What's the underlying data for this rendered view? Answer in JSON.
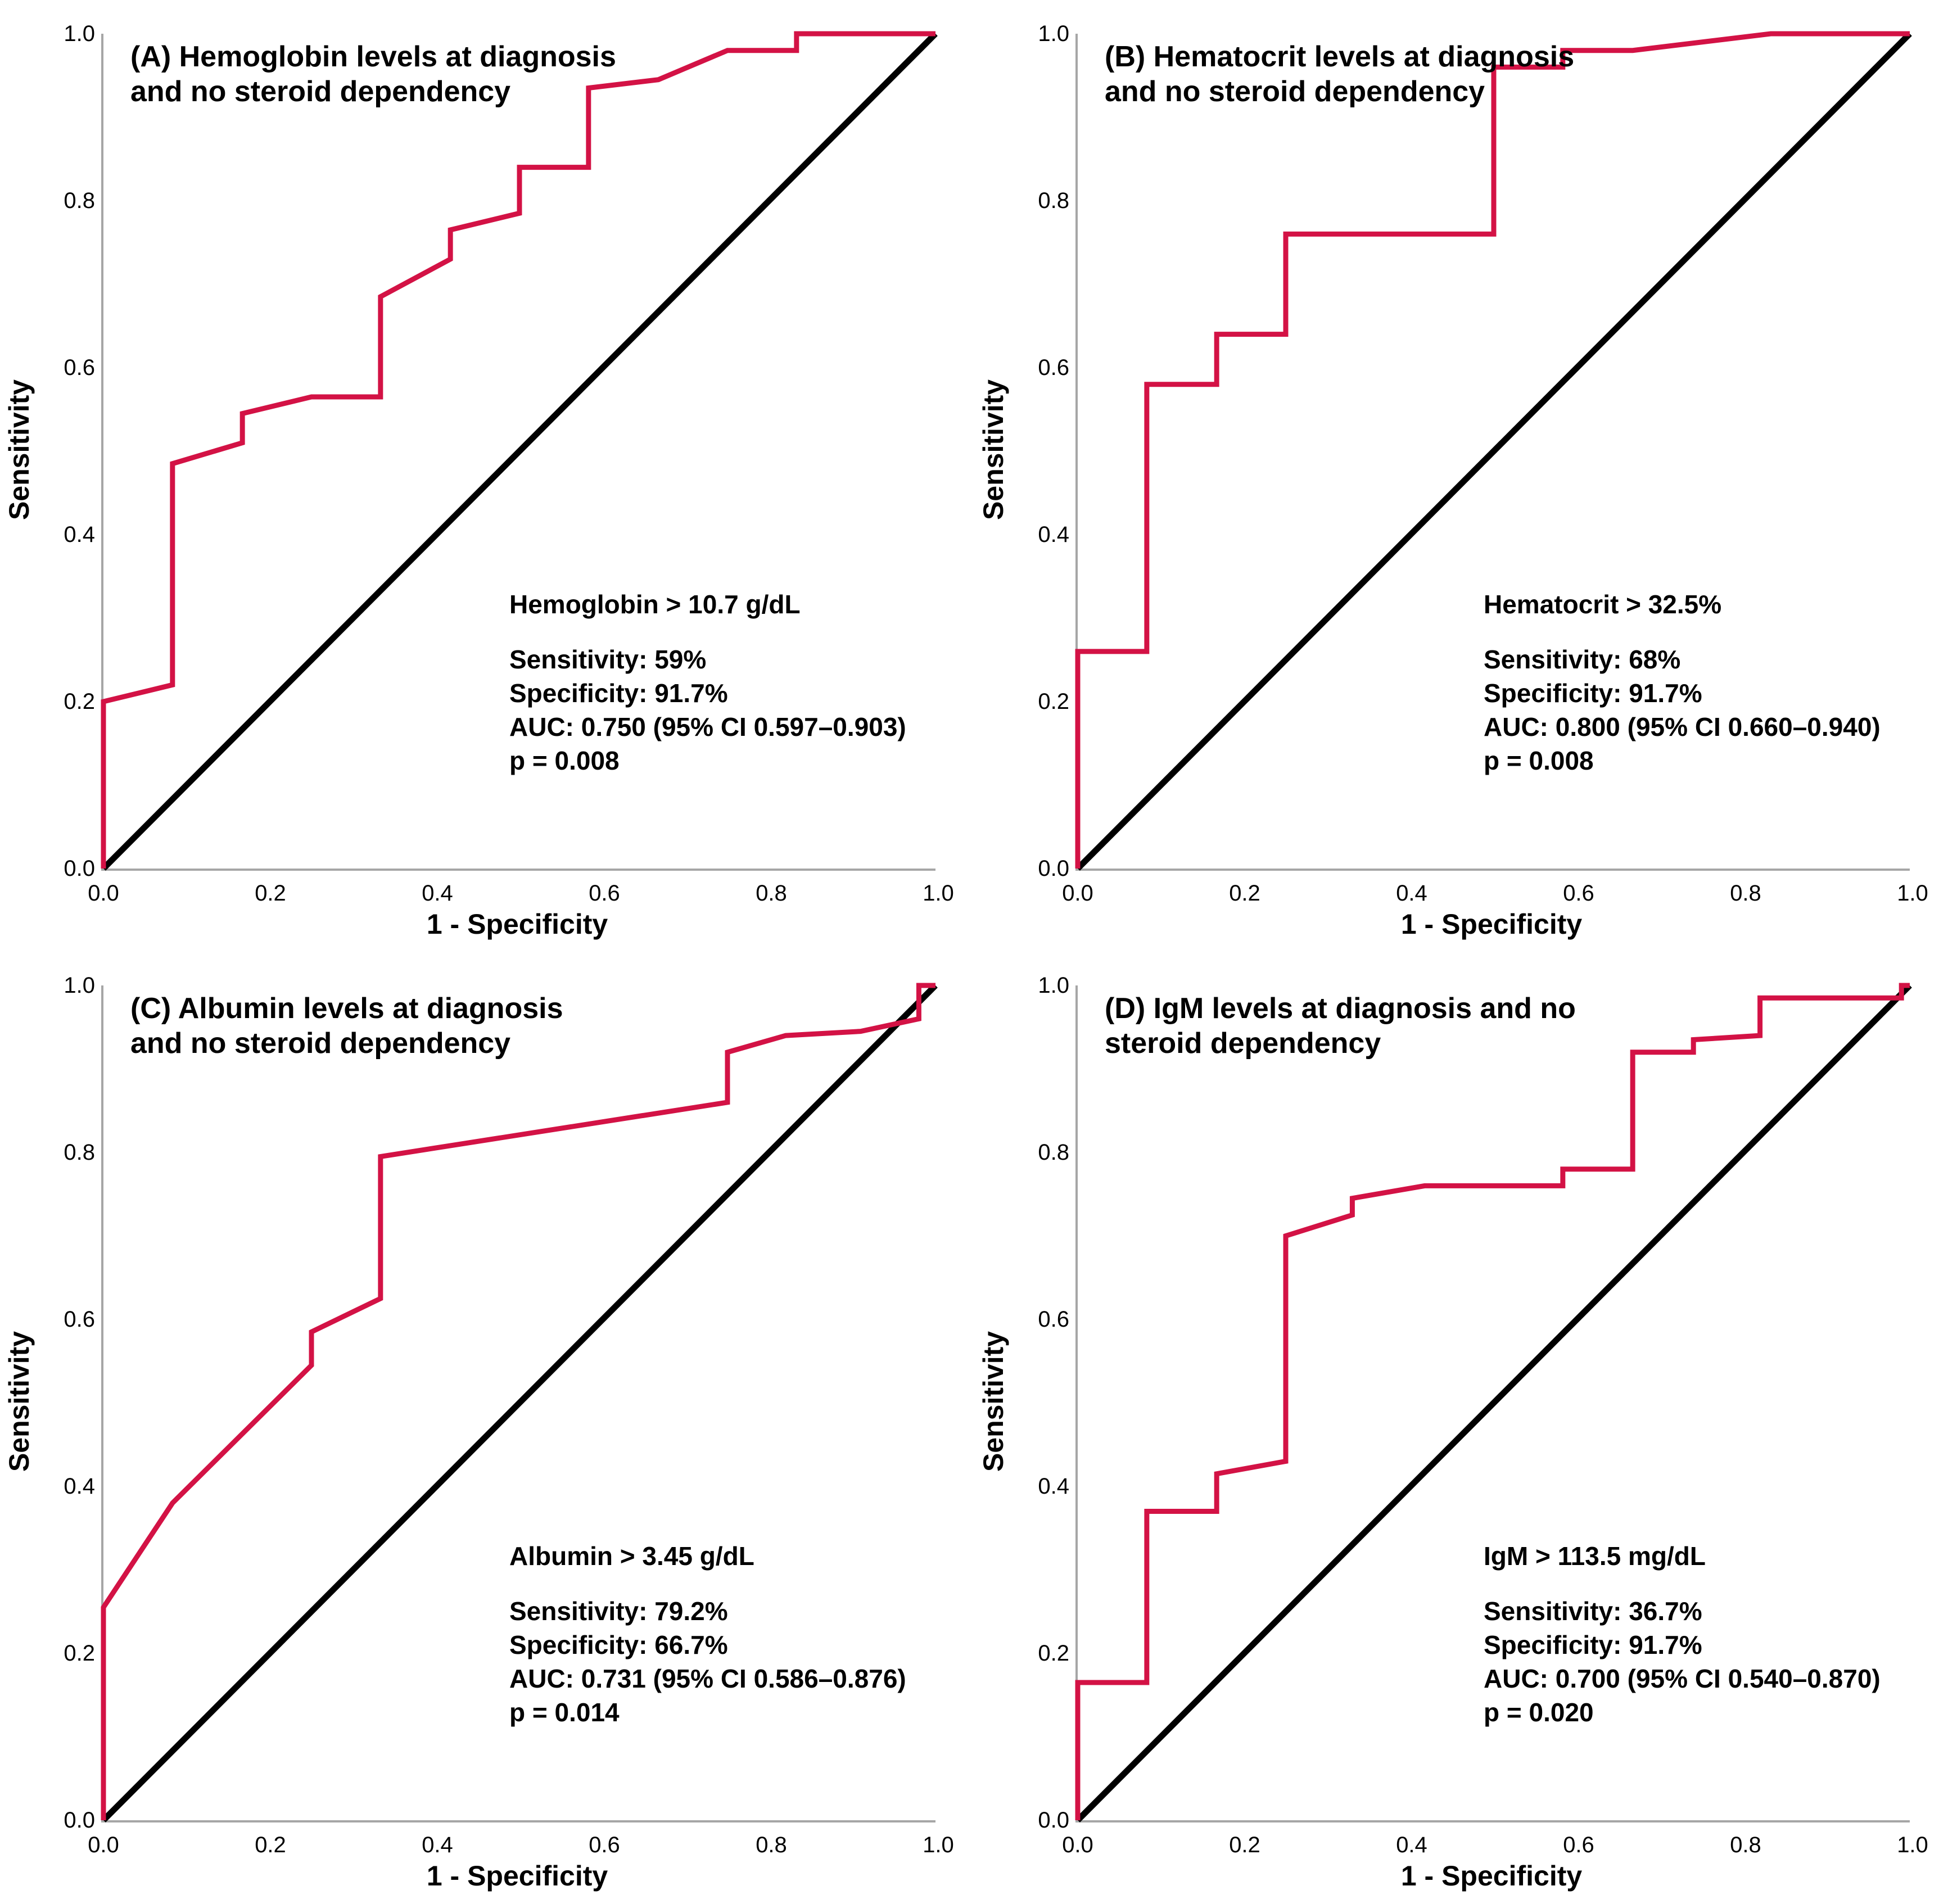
{
  "figure": {
    "description": "2x2 grid of ROC curve panels"
  },
  "axes": {
    "xlabel": "1 - Specificity",
    "ylabel": "Sensitivity",
    "x_ticks": [
      "0.0",
      "0.2",
      "0.4",
      "0.6",
      "0.8",
      "1.0"
    ],
    "y_ticks": [
      "0.0",
      "0.2",
      "0.4",
      "0.6",
      "0.8",
      "1.0"
    ],
    "xlim": [
      0,
      1
    ],
    "ylim": [
      0,
      1
    ]
  },
  "colors": {
    "roc_curve": "#d31245",
    "reference_line": "#000000",
    "axis_line": "#a6a6a6",
    "text": "#000000",
    "background": "#ffffff"
  },
  "panels": [
    {
      "id": "A",
      "title": "(A) Hemoglobin levels at diagnosis\nand no steroid dependency",
      "annotation": {
        "threshold": "Hemoglobin > 10.7 g/dL",
        "sensitivity": "Sensitivity: 59%",
        "specificity": "Specificity: 91.7%",
        "auc": "AUC: 0.750 (95% CI 0.597–0.903)",
        "p_value": "p = 0.008"
      }
    },
    {
      "id": "B",
      "title": "(B) Hematocrit levels at diagnosis\nand no steroid dependency",
      "annotation": {
        "threshold": "Hematocrit > 32.5%",
        "sensitivity": "Sensitivity: 68%",
        "specificity": "Specificity: 91.7%",
        "auc": "AUC: 0.800 (95% CI 0.660–0.940)",
        "p_value": "p = 0.008"
      }
    },
    {
      "id": "C",
      "title": "(C) Albumin levels at diagnosis\nand no steroid dependency",
      "annotation": {
        "threshold": "Albumin > 3.45 g/dL",
        "sensitivity": "Sensitivity: 79.2%",
        "specificity": "Specificity: 66.7%",
        "auc": "AUC: 0.731 (95% CI 0.586–0.876)",
        "p_value": "p = 0.014"
      }
    },
    {
      "id": "D",
      "title": "(D) IgM levels at diagnosis and no\nsteroid dependency",
      "annotation": {
        "threshold": "IgM > 113.5 mg/dL",
        "sensitivity": "Sensitivity: 36.7%",
        "specificity": "Specificity: 91.7%",
        "auc": "AUC: 0.700 (95% CI 0.540–0.870)",
        "p_value": "p = 0.020"
      }
    }
  ],
  "chart_data": [
    {
      "type": "line",
      "title": "(A) Hemoglobin levels at diagnosis and no steroid dependency",
      "xlabel": "1 - Specificity",
      "ylabel": "Sensitivity",
      "xlim": [
        0,
        1
      ],
      "ylim": [
        0,
        1
      ],
      "grid": false,
      "series": [
        {
          "name": "ROC curve",
          "color": "#d31245",
          "points": [
            [
              0,
              0
            ],
            [
              0,
              0.2
            ],
            [
              0.083,
              0.22
            ],
            [
              0.083,
              0.485
            ],
            [
              0.167,
              0.51
            ],
            [
              0.167,
              0.545
            ],
            [
              0.25,
              0.565
            ],
            [
              0.333,
              0.565
            ],
            [
              0.333,
              0.685
            ],
            [
              0.417,
              0.73
            ],
            [
              0.417,
              0.765
            ],
            [
              0.5,
              0.785
            ],
            [
              0.5,
              0.84
            ],
            [
              0.583,
              0.84
            ],
            [
              0.583,
              0.935
            ],
            [
              0.667,
              0.945
            ],
            [
              0.75,
              0.98
            ],
            [
              0.833,
              0.98
            ],
            [
              0.833,
              1
            ],
            [
              1,
              1
            ]
          ]
        },
        {
          "name": "Reference line",
          "color": "#000000",
          "points": [
            [
              0,
              0
            ],
            [
              1,
              1
            ]
          ]
        }
      ]
    },
    {
      "type": "line",
      "title": "(B) Hematocrit levels at diagnosis and no steroid dependency",
      "xlabel": "1 - Specificity",
      "ylabel": "Sensitivity",
      "xlim": [
        0,
        1
      ],
      "ylim": [
        0,
        1
      ],
      "grid": false,
      "series": [
        {
          "name": "ROC curve",
          "color": "#d31245",
          "points": [
            [
              0,
              0
            ],
            [
              0,
              0.26
            ],
            [
              0.083,
              0.26
            ],
            [
              0.083,
              0.58
            ],
            [
              0.167,
              0.58
            ],
            [
              0.167,
              0.64
            ],
            [
              0.25,
              0.64
            ],
            [
              0.25,
              0.76
            ],
            [
              0.5,
              0.76
            ],
            [
              0.5,
              0.96
            ],
            [
              0.583,
              0.96
            ],
            [
              0.583,
              0.98
            ],
            [
              0.667,
              0.98
            ],
            [
              0.833,
              1
            ],
            [
              1,
              1
            ]
          ]
        },
        {
          "name": "Reference line",
          "color": "#000000",
          "points": [
            [
              0,
              0
            ],
            [
              1,
              1
            ]
          ]
        }
      ]
    },
    {
      "type": "line",
      "title": "(C) Albumin levels at diagnosis and no steroid dependency",
      "xlabel": "1 - Specificity",
      "ylabel": "Sensitivity",
      "xlim": [
        0,
        1
      ],
      "ylim": [
        0,
        1
      ],
      "grid": false,
      "series": [
        {
          "name": "ROC curve",
          "color": "#d31245",
          "points": [
            [
              0,
              0
            ],
            [
              0,
              0.255
            ],
            [
              0.083,
              0.38
            ],
            [
              0.25,
              0.545
            ],
            [
              0.25,
              0.585
            ],
            [
              0.333,
              0.625
            ],
            [
              0.333,
              0.795
            ],
            [
              0.75,
              0.86
            ],
            [
              0.75,
              0.92
            ],
            [
              0.82,
              0.94
            ],
            [
              0.91,
              0.945
            ],
            [
              0.98,
              0.96
            ],
            [
              0.98,
              1
            ],
            [
              1,
              1
            ]
          ]
        },
        {
          "name": "Reference line",
          "color": "#000000",
          "points": [
            [
              0,
              0
            ],
            [
              1,
              1
            ]
          ]
        }
      ]
    },
    {
      "type": "line",
      "title": "(D) IgM levels at diagnosis and no steroid dependency",
      "xlabel": "1 - Specificity",
      "ylabel": "Sensitivity",
      "xlim": [
        0,
        1
      ],
      "ylim": [
        0,
        1
      ],
      "grid": false,
      "series": [
        {
          "name": "ROC curve",
          "color": "#d31245",
          "points": [
            [
              0,
              0
            ],
            [
              0,
              0.165
            ],
            [
              0.083,
              0.165
            ],
            [
              0.083,
              0.37
            ],
            [
              0.167,
              0.37
            ],
            [
              0.167,
              0.415
            ],
            [
              0.25,
              0.43
            ],
            [
              0.25,
              0.7
            ],
            [
              0.33,
              0.725
            ],
            [
              0.33,
              0.745
            ],
            [
              0.417,
              0.76
            ],
            [
              0.583,
              0.76
            ],
            [
              0.583,
              0.78
            ],
            [
              0.667,
              0.78
            ],
            [
              0.667,
              0.92
            ],
            [
              0.74,
              0.92
            ],
            [
              0.74,
              0.935
            ],
            [
              0.82,
              0.94
            ],
            [
              0.82,
              0.985
            ],
            [
              0.99,
              0.985
            ],
            [
              0.99,
              1
            ],
            [
              1,
              1
            ]
          ]
        },
        {
          "name": "Reference line",
          "color": "#000000",
          "points": [
            [
              0,
              0
            ],
            [
              1,
              1
            ]
          ]
        }
      ]
    }
  ]
}
